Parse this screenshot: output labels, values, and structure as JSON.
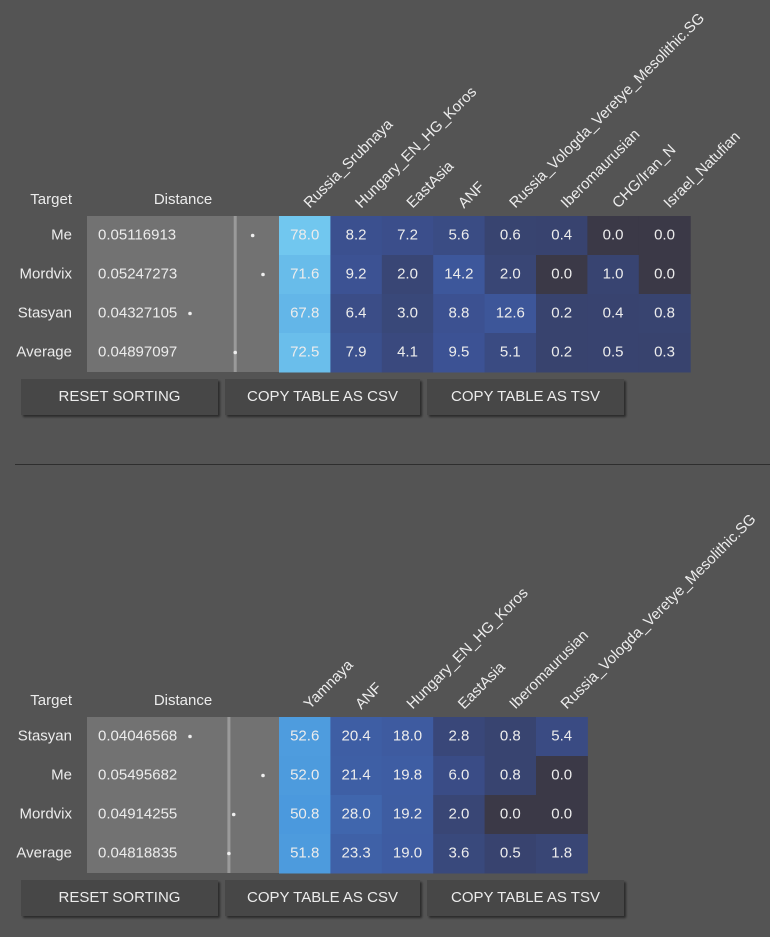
{
  "tables": [
    {
      "header": {
        "target": "Target",
        "distance": "Distance"
      },
      "columns": [
        "Russia_Srubnaya",
        "Hungary_EN_HG_Koros",
        "EastAsia",
        "ANF",
        "Russia_Vologda_Veretye_Mesolithic.SG",
        "Iberomaurusian",
        "CHG/Iran_N",
        "Israel_Natufian"
      ],
      "rows": [
        {
          "target": "Me",
          "distance": 0.05116913,
          "values": [
            "78.0",
            "8.2",
            "7.2",
            "5.6",
            "0.6",
            "0.4",
            "0.0",
            "0.0"
          ]
        },
        {
          "target": "Mordvix",
          "distance": 0.05247273,
          "values": [
            "71.6",
            "9.2",
            "2.0",
            "14.2",
            "2.0",
            "0.0",
            "1.0",
            "0.0"
          ]
        },
        {
          "target": "Stasyan",
          "distance": 0.04327105,
          "values": [
            "67.8",
            "6.4",
            "3.0",
            "8.8",
            "12.6",
            "0.2",
            "0.4",
            "0.8"
          ]
        },
        {
          "target": "Average",
          "distance": 0.04897097,
          "values": [
            "72.5",
            "7.9",
            "4.1",
            "9.5",
            "5.1",
            "0.2",
            "0.5",
            "0.3"
          ]
        }
      ],
      "buttons": [
        "RESET SORTING",
        "COPY TABLE AS CSV",
        "COPY TABLE AS TSV"
      ]
    },
    {
      "header": {
        "target": "Target",
        "distance": "Distance"
      },
      "columns": [
        "Yamnaya",
        "ANF",
        "Hungary_EN_HG_Koros",
        "EastAsia",
        "Iberomaurusian",
        "Russia_Vologda_Veretye_Mesolithic.SG"
      ],
      "rows": [
        {
          "target": "Stasyan",
          "distance": 0.04046568,
          "values": [
            "52.6",
            "20.4",
            "18.0",
            "2.8",
            "0.8",
            "5.4"
          ]
        },
        {
          "target": "Me",
          "distance": 0.05495682,
          "values": [
            "52.0",
            "21.4",
            "19.8",
            "6.0",
            "0.8",
            "0.0"
          ]
        },
        {
          "target": "Mordvix",
          "distance": 0.04914255,
          "values": [
            "50.8",
            "28.0",
            "19.2",
            "2.0",
            "0.0",
            "0.0"
          ]
        },
        {
          "target": "Average",
          "distance": 0.04818835,
          "values": [
            "51.8",
            "23.3",
            "19.0",
            "3.6",
            "0.5",
            "1.8"
          ]
        }
      ],
      "buttons": [
        "RESET SORTING",
        "COPY TABLE AS CSV",
        "COPY TABLE AS TSV"
      ]
    }
  ]
}
